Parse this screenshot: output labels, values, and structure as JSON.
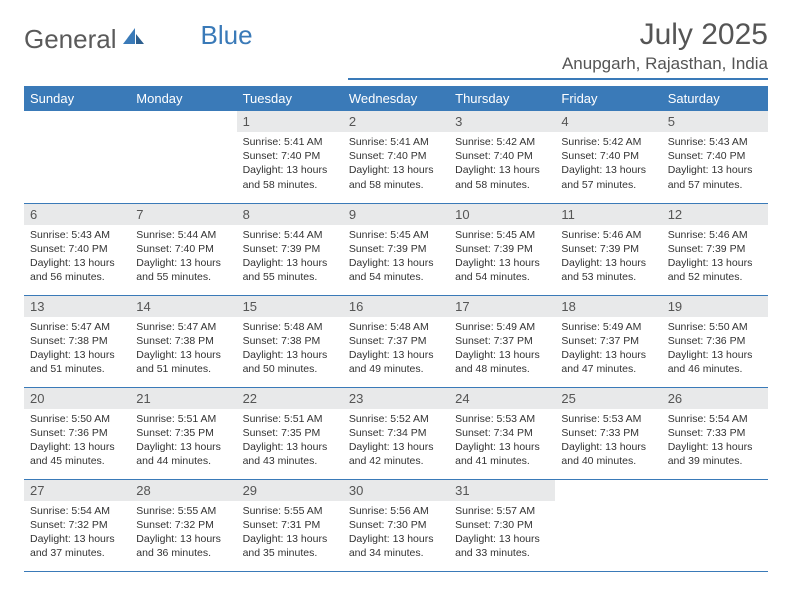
{
  "brand": {
    "part1": "General",
    "part2": "Blue"
  },
  "title": "July 2025",
  "location": "Anupgarh, Rajasthan, India",
  "colors": {
    "accent": "#3a7ab8",
    "headerBg": "#3a7ab8",
    "dayBg": "#e8e9ea",
    "text": "#333",
    "muted": "#555"
  },
  "weekdays": [
    "Sunday",
    "Monday",
    "Tuesday",
    "Wednesday",
    "Thursday",
    "Friday",
    "Saturday"
  ],
  "weeks": [
    [
      null,
      null,
      {
        "n": "1",
        "sr": "Sunrise: 5:41 AM",
        "ss": "Sunset: 7:40 PM",
        "d1": "Daylight: 13 hours",
        "d2": "and 58 minutes."
      },
      {
        "n": "2",
        "sr": "Sunrise: 5:41 AM",
        "ss": "Sunset: 7:40 PM",
        "d1": "Daylight: 13 hours",
        "d2": "and 58 minutes."
      },
      {
        "n": "3",
        "sr": "Sunrise: 5:42 AM",
        "ss": "Sunset: 7:40 PM",
        "d1": "Daylight: 13 hours",
        "d2": "and 58 minutes."
      },
      {
        "n": "4",
        "sr": "Sunrise: 5:42 AM",
        "ss": "Sunset: 7:40 PM",
        "d1": "Daylight: 13 hours",
        "d2": "and 57 minutes."
      },
      {
        "n": "5",
        "sr": "Sunrise: 5:43 AM",
        "ss": "Sunset: 7:40 PM",
        "d1": "Daylight: 13 hours",
        "d2": "and 57 minutes."
      }
    ],
    [
      {
        "n": "6",
        "sr": "Sunrise: 5:43 AM",
        "ss": "Sunset: 7:40 PM",
        "d1": "Daylight: 13 hours",
        "d2": "and 56 minutes."
      },
      {
        "n": "7",
        "sr": "Sunrise: 5:44 AM",
        "ss": "Sunset: 7:40 PM",
        "d1": "Daylight: 13 hours",
        "d2": "and 55 minutes."
      },
      {
        "n": "8",
        "sr": "Sunrise: 5:44 AM",
        "ss": "Sunset: 7:39 PM",
        "d1": "Daylight: 13 hours",
        "d2": "and 55 minutes."
      },
      {
        "n": "9",
        "sr": "Sunrise: 5:45 AM",
        "ss": "Sunset: 7:39 PM",
        "d1": "Daylight: 13 hours",
        "d2": "and 54 minutes."
      },
      {
        "n": "10",
        "sr": "Sunrise: 5:45 AM",
        "ss": "Sunset: 7:39 PM",
        "d1": "Daylight: 13 hours",
        "d2": "and 54 minutes."
      },
      {
        "n": "11",
        "sr": "Sunrise: 5:46 AM",
        "ss": "Sunset: 7:39 PM",
        "d1": "Daylight: 13 hours",
        "d2": "and 53 minutes."
      },
      {
        "n": "12",
        "sr": "Sunrise: 5:46 AM",
        "ss": "Sunset: 7:39 PM",
        "d1": "Daylight: 13 hours",
        "d2": "and 52 minutes."
      }
    ],
    [
      {
        "n": "13",
        "sr": "Sunrise: 5:47 AM",
        "ss": "Sunset: 7:38 PM",
        "d1": "Daylight: 13 hours",
        "d2": "and 51 minutes."
      },
      {
        "n": "14",
        "sr": "Sunrise: 5:47 AM",
        "ss": "Sunset: 7:38 PM",
        "d1": "Daylight: 13 hours",
        "d2": "and 51 minutes."
      },
      {
        "n": "15",
        "sr": "Sunrise: 5:48 AM",
        "ss": "Sunset: 7:38 PM",
        "d1": "Daylight: 13 hours",
        "d2": "and 50 minutes."
      },
      {
        "n": "16",
        "sr": "Sunrise: 5:48 AM",
        "ss": "Sunset: 7:37 PM",
        "d1": "Daylight: 13 hours",
        "d2": "and 49 minutes."
      },
      {
        "n": "17",
        "sr": "Sunrise: 5:49 AM",
        "ss": "Sunset: 7:37 PM",
        "d1": "Daylight: 13 hours",
        "d2": "and 48 minutes."
      },
      {
        "n": "18",
        "sr": "Sunrise: 5:49 AM",
        "ss": "Sunset: 7:37 PM",
        "d1": "Daylight: 13 hours",
        "d2": "and 47 minutes."
      },
      {
        "n": "19",
        "sr": "Sunrise: 5:50 AM",
        "ss": "Sunset: 7:36 PM",
        "d1": "Daylight: 13 hours",
        "d2": "and 46 minutes."
      }
    ],
    [
      {
        "n": "20",
        "sr": "Sunrise: 5:50 AM",
        "ss": "Sunset: 7:36 PM",
        "d1": "Daylight: 13 hours",
        "d2": "and 45 minutes."
      },
      {
        "n": "21",
        "sr": "Sunrise: 5:51 AM",
        "ss": "Sunset: 7:35 PM",
        "d1": "Daylight: 13 hours",
        "d2": "and 44 minutes."
      },
      {
        "n": "22",
        "sr": "Sunrise: 5:51 AM",
        "ss": "Sunset: 7:35 PM",
        "d1": "Daylight: 13 hours",
        "d2": "and 43 minutes."
      },
      {
        "n": "23",
        "sr": "Sunrise: 5:52 AM",
        "ss": "Sunset: 7:34 PM",
        "d1": "Daylight: 13 hours",
        "d2": "and 42 minutes."
      },
      {
        "n": "24",
        "sr": "Sunrise: 5:53 AM",
        "ss": "Sunset: 7:34 PM",
        "d1": "Daylight: 13 hours",
        "d2": "and 41 minutes."
      },
      {
        "n": "25",
        "sr": "Sunrise: 5:53 AM",
        "ss": "Sunset: 7:33 PM",
        "d1": "Daylight: 13 hours",
        "d2": "and 40 minutes."
      },
      {
        "n": "26",
        "sr": "Sunrise: 5:54 AM",
        "ss": "Sunset: 7:33 PM",
        "d1": "Daylight: 13 hours",
        "d2": "and 39 minutes."
      }
    ],
    [
      {
        "n": "27",
        "sr": "Sunrise: 5:54 AM",
        "ss": "Sunset: 7:32 PM",
        "d1": "Daylight: 13 hours",
        "d2": "and 37 minutes."
      },
      {
        "n": "28",
        "sr": "Sunrise: 5:55 AM",
        "ss": "Sunset: 7:32 PM",
        "d1": "Daylight: 13 hours",
        "d2": "and 36 minutes."
      },
      {
        "n": "29",
        "sr": "Sunrise: 5:55 AM",
        "ss": "Sunset: 7:31 PM",
        "d1": "Daylight: 13 hours",
        "d2": "and 35 minutes."
      },
      {
        "n": "30",
        "sr": "Sunrise: 5:56 AM",
        "ss": "Sunset: 7:30 PM",
        "d1": "Daylight: 13 hours",
        "d2": "and 34 minutes."
      },
      {
        "n": "31",
        "sr": "Sunrise: 5:57 AM",
        "ss": "Sunset: 7:30 PM",
        "d1": "Daylight: 13 hours",
        "d2": "and 33 minutes."
      },
      null,
      null
    ]
  ]
}
